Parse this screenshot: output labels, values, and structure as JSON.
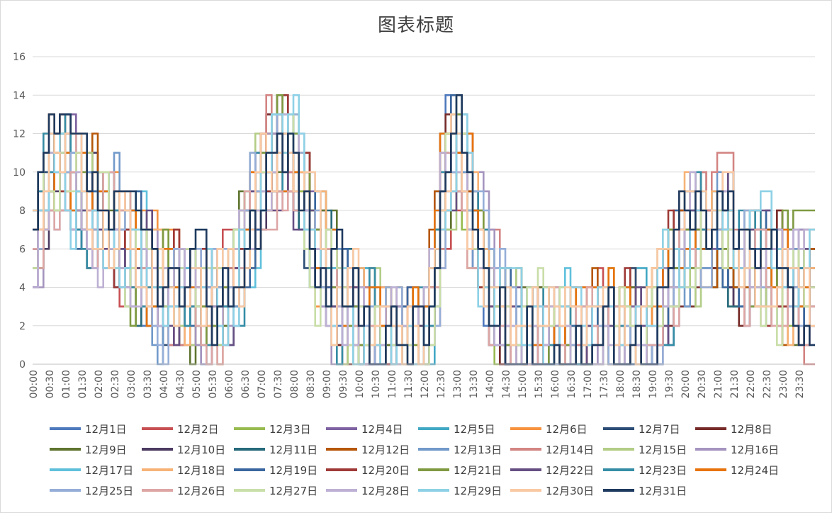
{
  "chart_data": {
    "type": "line",
    "title": "图表标题",
    "xlabel": "",
    "ylabel": "",
    "ylim": [
      0,
      16
    ],
    "y_ticks": [
      0,
      2,
      4,
      6,
      8,
      10,
      12,
      14,
      16
    ],
    "x_tick_labels": [
      "00:00",
      "00:30",
      "01:00",
      "01:30",
      "02:00",
      "02:30",
      "03:00",
      "03:30",
      "04:00",
      "04:30",
      "05:00",
      "05:30",
      "06:00",
      "06:30",
      "07:00",
      "07:30",
      "08:00",
      "08:30",
      "09:00",
      "09:30",
      "10:00",
      "10:30",
      "11:00",
      "11:30",
      "12:00",
      "12:30",
      "13:00",
      "13:30",
      "14:00",
      "14:30",
      "15:00",
      "15:30",
      "16:00",
      "16:30",
      "17:00",
      "17:30",
      "18:00",
      "18:30",
      "19:00",
      "19:30",
      "20:00",
      "20:30",
      "21:00",
      "21:30",
      "22:00",
      "22:30",
      "23:00",
      "23:30"
    ],
    "x_points_per_day": 144,
    "grid": true,
    "legend_position": "bottom",
    "step_line": true,
    "series": [
      {
        "name": "12月1日",
        "color": "#4e79bd"
      },
      {
        "name": "12月2日",
        "color": "#c75054"
      },
      {
        "name": "12月3日",
        "color": "#98bb50"
      },
      {
        "name": "12月4日",
        "color": "#7e62a1"
      },
      {
        "name": "12月5日",
        "color": "#41a8c4"
      },
      {
        "name": "12月6日",
        "color": "#f7923f"
      },
      {
        "name": "12月7日",
        "color": "#2c4d75"
      },
      {
        "name": "12月8日",
        "color": "#772c2a"
      },
      {
        "name": "12月9日",
        "color": "#5f7530"
      },
      {
        "name": "12月10日",
        "color": "#4d3b62"
      },
      {
        "name": "12月11日",
        "color": "#276a7c"
      },
      {
        "name": "12月12日",
        "color": "#b65708"
      },
      {
        "name": "12月13日",
        "color": "#729aca"
      },
      {
        "name": "12月14日",
        "color": "#d38583"
      },
      {
        "name": "12月15日",
        "color": "#b3cd86"
      },
      {
        "name": "12月16日",
        "color": "#a594bf"
      },
      {
        "name": "12月17日",
        "color": "#5fc0dc"
      },
      {
        "name": "12月18日",
        "color": "#f7b276"
      },
      {
        "name": "12月19日",
        "color": "#3a679f"
      },
      {
        "name": "12月20日",
        "color": "#9f3a38"
      },
      {
        "name": "12月21日",
        "color": "#7f9a41"
      },
      {
        "name": "12月22日",
        "color": "#664f83"
      },
      {
        "name": "12月23日",
        "color": "#358da6"
      },
      {
        "name": "12月24日",
        "color": "#e7730c"
      },
      {
        "name": "12月25日",
        "color": "#95aed8"
      },
      {
        "name": "12月26日",
        "color": "#dda6a5"
      },
      {
        "name": "12月27日",
        "color": "#c9dea8"
      },
      {
        "name": "12月28日",
        "color": "#bdb0d4"
      },
      {
        "name": "12月29日",
        "color": "#8ed1e6"
      },
      {
        "name": "12月30日",
        "color": "#f9c9a4"
      },
      {
        "name": "12月31日",
        "color": "#1f3a5f"
      }
    ],
    "profile": {
      "description_points_x_hours": [
        0,
        0.3,
        0.7,
        1.2,
        1.7,
        2.2,
        2.7,
        3.2,
        3.7,
        4.2,
        4.7,
        5.2,
        5.7,
        6.0,
        6.4,
        6.8,
        7.2,
        7.6,
        8.0,
        8.3,
        8.6,
        9.0,
        9.5,
        10.0,
        10.5,
        11.0,
        11.5,
        12.0,
        12.2,
        12.5,
        12.8,
        13.1,
        13.4,
        13.7,
        14.0,
        14.5,
        15.0,
        16.0,
        17.0,
        18.0,
        18.7,
        19.0,
        19.3,
        19.7,
        20.0,
        20.5,
        21.0,
        21.5,
        22.0,
        22.5,
        23.0,
        23.5,
        23.99
      ],
      "mean_y": [
        6,
        11,
        11,
        9,
        8,
        7,
        6,
        5,
        4,
        4,
        3.5,
        3,
        3,
        4.5,
        7,
        9.5,
        11,
        12,
        10,
        7,
        5,
        4,
        3,
        2,
        1.5,
        1,
        1,
        1.5,
        5,
        11,
        12,
        10,
        7,
        4,
        2.5,
        1.5,
        1,
        1,
        1,
        1.5,
        1.8,
        3,
        5,
        6,
        7,
        7.5,
        7,
        6.5,
        5.5,
        5,
        4.5,
        4,
        4
      ]
    }
  }
}
